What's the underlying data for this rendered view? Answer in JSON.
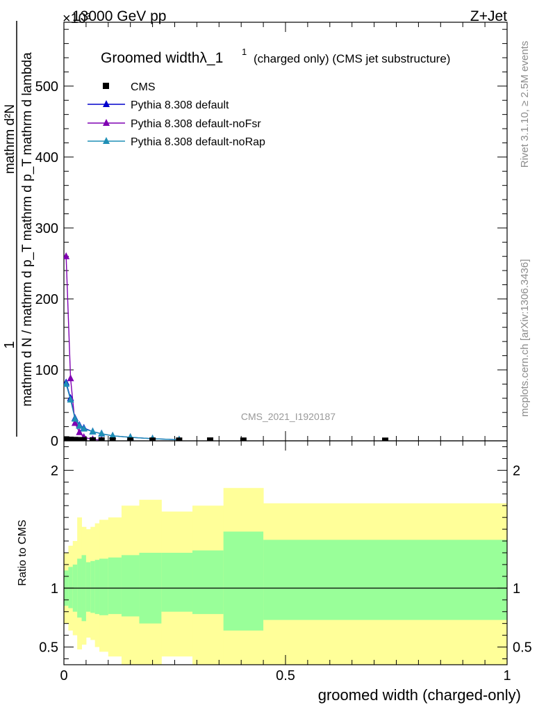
{
  "header": {
    "left_label": "13000 GeV pp",
    "right_label": "Z+Jet",
    "exponent_label": "×10³"
  },
  "watermark": "CMS_2021_I1920187",
  "side": {
    "rivet": "Rivet 3.1.10, ≥ 2.5M events",
    "mcplots": "mcplots.cern.ch [arXiv:1306.3436]"
  },
  "chart_data": {
    "type": "line",
    "title": "Groomed widthλ_1",
    "title_sup": "1",
    "subtitle": "(charged only) (CMS jet substructure)",
    "ylabel_numerator": "mathrm d²N",
    "ylabel_numerator_prefix": "1",
    "ylabel_denominator": "mathrm d N / mathrm d p_T mathrm d p_T mathrm d lambda",
    "xlabel": "groomed width (charged-only)",
    "ratio_ylabel": "Ratio to CMS",
    "xlim": [
      0,
      1
    ],
    "ylim": [
      0,
      590
    ],
    "ratio_ylim": [
      0.35,
      2.25
    ],
    "x_ticks": [
      0,
      0.5,
      1
    ],
    "x_tick_labels": [
      "0",
      "0.5",
      "1"
    ],
    "y_ticks": [
      0,
      100,
      200,
      300,
      400,
      500
    ],
    "y_tick_labels": [
      "0",
      "100",
      "200",
      "300",
      "400",
      "500"
    ],
    "ratio_ticks": [
      0.5,
      1,
      2
    ],
    "ratio_tick_labels": [
      "0.5",
      "1",
      "2"
    ],
    "legend": [
      "CMS",
      "Pythia 8.308 default",
      "Pythia 8.308 default-noFsr",
      "Pythia 8.308 default-noRap"
    ],
    "data": {
      "name": "CMS",
      "color": "#000000",
      "x": [
        0.005,
        0.015,
        0.025,
        0.035,
        0.045,
        0.065,
        0.085,
        0.11,
        0.15,
        0.2,
        0.26,
        0.33,
        0.405,
        0.725
      ],
      "y": [
        2,
        1.5,
        1.2,
        1,
        0.8,
        0.7,
        0.6,
        0.5,
        0.4,
        0.3,
        0.3,
        0.4,
        0.3,
        0.2
      ]
    },
    "series": [
      {
        "name": "Pythia 8.308 default",
        "color": "#0000cc",
        "x": [
          0.005,
          0.015,
          0.025,
          0.035,
          0.045,
          0.065,
          0.085,
          0.11,
          0.15,
          0.2,
          0.26
        ],
        "y": [
          82,
          60,
          32,
          22,
          18,
          13,
          10,
          7,
          5,
          3,
          1.5
        ]
      },
      {
        "name": "Pythia 8.308 default-noFsr",
        "color": "#7f00b2",
        "x": [
          0.005,
          0.015,
          0.025,
          0.035,
          0.045,
          0.065,
          0.085
        ],
        "y": [
          260,
          88,
          25,
          12,
          5,
          2,
          1
        ]
      },
      {
        "name": "Pythia 8.308 default-noRap",
        "color": "#1f8fb5",
        "x": [
          0.005,
          0.015,
          0.025,
          0.035,
          0.045,
          0.065,
          0.085,
          0.11,
          0.15,
          0.2,
          0.26
        ],
        "y": [
          80,
          58,
          31,
          21,
          17,
          13,
          10,
          7,
          5,
          3,
          1.5
        ]
      }
    ],
    "ratio_bands": {
      "edges": [
        0,
        0.01,
        0.02,
        0.03,
        0.04,
        0.05,
        0.06,
        0.07,
        0.08,
        0.1,
        0.13,
        0.17,
        0.22,
        0.29,
        0.36,
        0.45,
        1.0
      ],
      "green_lo": [
        0.85,
        0.83,
        0.8,
        0.75,
        0.72,
        0.8,
        0.79,
        0.78,
        0.77,
        0.78,
        0.76,
        0.7,
        0.8,
        0.78,
        0.64,
        0.73
      ],
      "green_hi": [
        1.15,
        1.18,
        1.2,
        1.25,
        1.28,
        1.22,
        1.23,
        1.24,
        1.25,
        1.26,
        1.28,
        1.3,
        1.3,
        1.32,
        1.48,
        1.41
      ],
      "yellow_lo": [
        0.7,
        0.64,
        0.6,
        0.48,
        0.52,
        0.58,
        0.56,
        0.5,
        0.46,
        0.42,
        0.35,
        0.35,
        0.42,
        0.35,
        0.35,
        0.35
      ],
      "yellow_hi": [
        1.3,
        1.36,
        1.4,
        1.6,
        1.52,
        1.5,
        1.52,
        1.55,
        1.58,
        1.6,
        1.7,
        1.75,
        1.65,
        1.7,
        1.85,
        1.72
      ],
      "green_color": "#99ff99",
      "yellow_color": "#ffff99"
    }
  }
}
